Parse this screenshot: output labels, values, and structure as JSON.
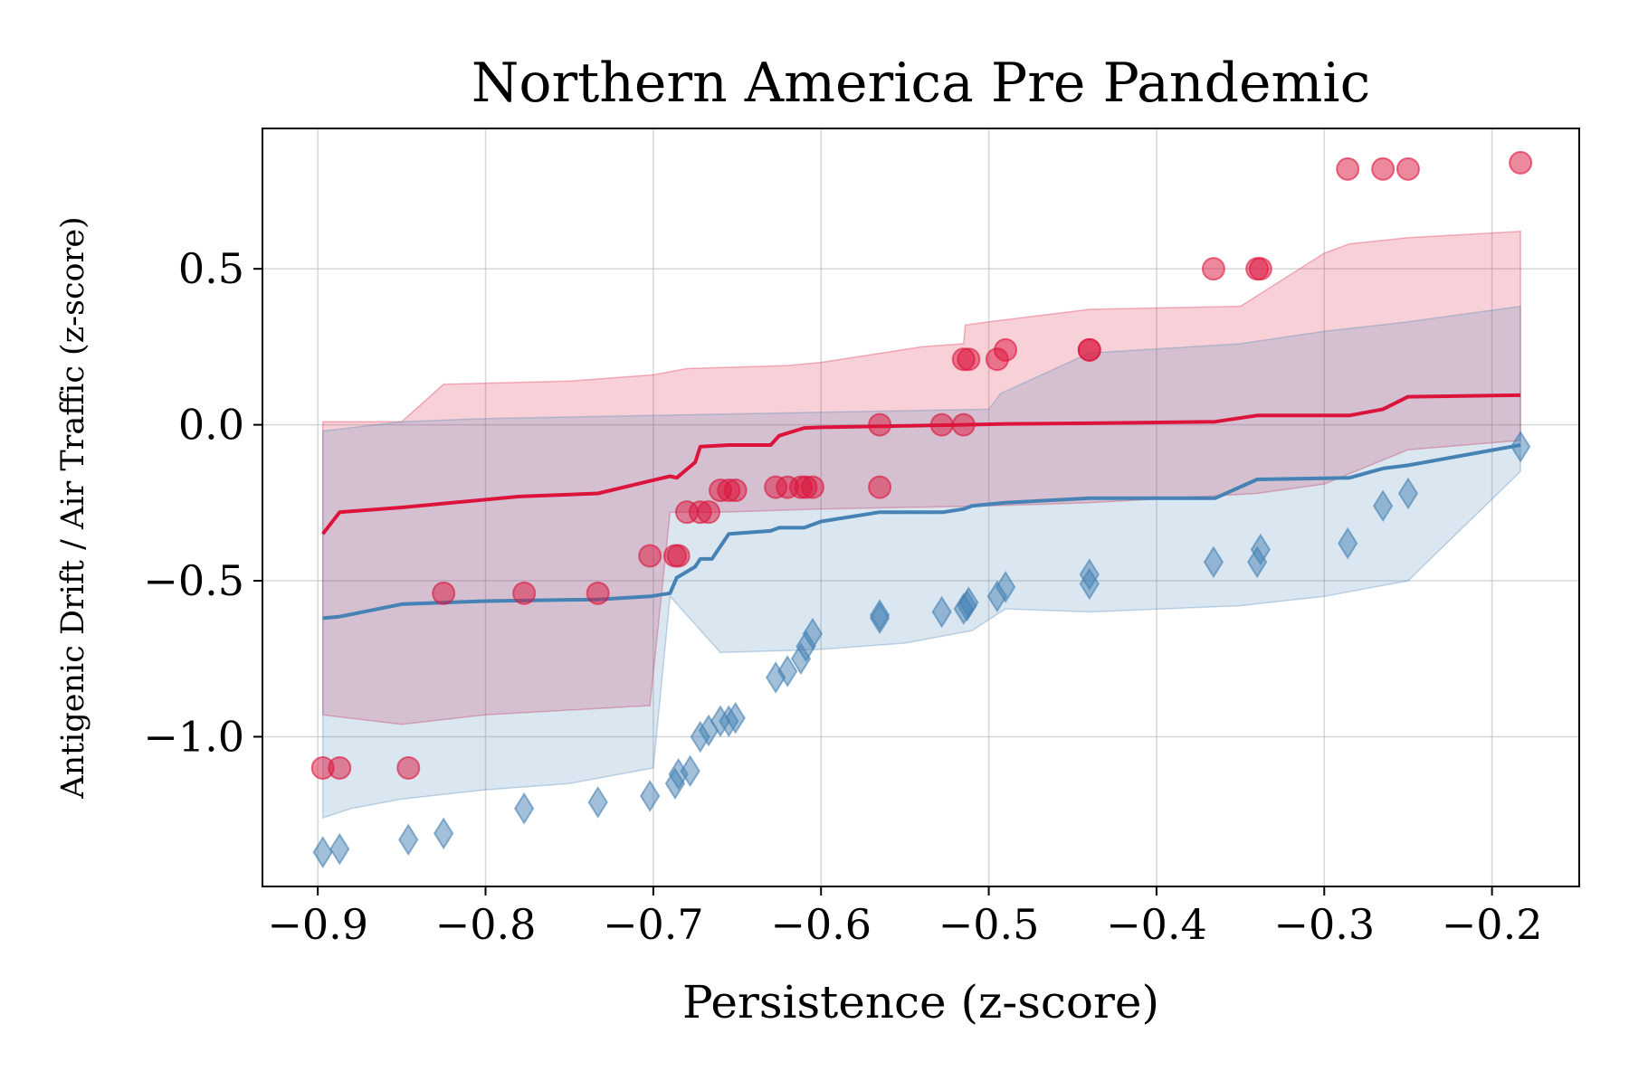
{
  "chart_data": {
    "type": "scatter",
    "title": "Northern America Pre Pandemic",
    "xlabel": "Persistence (z-score)",
    "ylabel": "Antigenic Drift / Air Traffic (z-score)",
    "xlim": [
      -0.933,
      -0.148
    ],
    "ylim": [
      -1.48,
      0.95
    ],
    "xticks": [
      -0.9,
      -0.8,
      -0.7,
      -0.6,
      -0.5,
      -0.4,
      -0.3,
      -0.2
    ],
    "xtick_labels": [
      "−0.9",
      "−0.8",
      "−0.7",
      "−0.6",
      "−0.5",
      "−0.4",
      "−0.3",
      "−0.2"
    ],
    "yticks": [
      0.5,
      0.0,
      -0.5,
      -1.0
    ],
    "ytick_labels": [
      "0.5",
      "0.0",
      "−0.5",
      "−1.0"
    ],
    "grid": true,
    "colors": {
      "red": "#dc143c",
      "blue": "#4682b4"
    },
    "bands": [
      {
        "color": "#dc143c",
        "upper": [
          [
            -0.897,
            0.01
          ],
          [
            -0.85,
            0.01
          ],
          [
            -0.825,
            0.13
          ],
          [
            -0.75,
            0.14
          ],
          [
            -0.7,
            0.16
          ],
          [
            -0.68,
            0.18
          ],
          [
            -0.62,
            0.19
          ],
          [
            -0.6,
            0.2
          ],
          [
            -0.54,
            0.25
          ],
          [
            -0.515,
            0.26
          ],
          [
            -0.514,
            0.32
          ],
          [
            -0.5,
            0.33
          ],
          [
            -0.44,
            0.37
          ],
          [
            -0.35,
            0.38
          ],
          [
            -0.3,
            0.55
          ],
          [
            -0.285,
            0.58
          ],
          [
            -0.25,
            0.6
          ],
          [
            -0.183,
            0.62
          ]
        ],
        "lower": [
          [
            -0.897,
            -0.93
          ],
          [
            -0.85,
            -0.96
          ],
          [
            -0.8,
            -0.93
          ],
          [
            -0.702,
            -0.9
          ],
          [
            -0.69,
            -0.28
          ],
          [
            -0.66,
            -0.28
          ],
          [
            -0.6,
            -0.27
          ],
          [
            -0.5,
            -0.26
          ],
          [
            -0.44,
            -0.25
          ],
          [
            -0.34,
            -0.22
          ],
          [
            -0.3,
            -0.19
          ],
          [
            -0.25,
            -0.08
          ],
          [
            -0.183,
            -0.05
          ]
        ]
      },
      {
        "color": "#4682b4",
        "upper": [
          [
            -0.897,
            -0.02
          ],
          [
            -0.85,
            0.01
          ],
          [
            -0.8,
            0.02
          ],
          [
            -0.7,
            0.03
          ],
          [
            -0.6,
            0.04
          ],
          [
            -0.5,
            0.05
          ],
          [
            -0.493,
            0.1
          ],
          [
            -0.44,
            0.23
          ],
          [
            -0.35,
            0.26
          ],
          [
            -0.3,
            0.3
          ],
          [
            -0.25,
            0.33
          ],
          [
            -0.183,
            0.38
          ]
        ],
        "lower": [
          [
            -0.897,
            -1.26
          ],
          [
            -0.88,
            -1.23
          ],
          [
            -0.85,
            -1.2
          ],
          [
            -0.8,
            -1.17
          ],
          [
            -0.75,
            -1.15
          ],
          [
            -0.7,
            -1.1
          ],
          [
            -0.69,
            -0.55
          ],
          [
            -0.66,
            -0.73
          ],
          [
            -0.6,
            -0.72
          ],
          [
            -0.55,
            -0.7
          ],
          [
            -0.51,
            -0.66
          ],
          [
            -0.49,
            -0.59
          ],
          [
            -0.44,
            -0.6
          ],
          [
            -0.35,
            -0.58
          ],
          [
            -0.3,
            -0.55
          ],
          [
            -0.25,
            -0.5
          ],
          [
            -0.183,
            -0.15
          ]
        ]
      }
    ],
    "lines": [
      {
        "color": "#dc143c",
        "points": [
          [
            -0.897,
            -0.35
          ],
          [
            -0.887,
            -0.28
          ],
          [
            -0.85,
            -0.265
          ],
          [
            -0.78,
            -0.23
          ],
          [
            -0.733,
            -0.22
          ],
          [
            -0.702,
            -0.18
          ],
          [
            -0.69,
            -0.165
          ],
          [
            -0.686,
            -0.17
          ],
          [
            -0.675,
            -0.12
          ],
          [
            -0.672,
            -0.07
          ],
          [
            -0.655,
            -0.065
          ],
          [
            -0.63,
            -0.065
          ],
          [
            -0.625,
            -0.035
          ],
          [
            -0.61,
            -0.01
          ],
          [
            -0.6,
            -0.008
          ],
          [
            -0.565,
            -0.005
          ],
          [
            -0.515,
            0.0
          ],
          [
            -0.49,
            0.003
          ],
          [
            -0.44,
            0.005
          ],
          [
            -0.365,
            0.01
          ],
          [
            -0.34,
            0.03
          ],
          [
            -0.285,
            0.03
          ],
          [
            -0.265,
            0.05
          ],
          [
            -0.25,
            0.09
          ],
          [
            -0.183,
            0.095
          ]
        ]
      },
      {
        "color": "#4682b4",
        "points": [
          [
            -0.897,
            -0.62
          ],
          [
            -0.887,
            -0.615
          ],
          [
            -0.85,
            -0.575
          ],
          [
            -0.8,
            -0.565
          ],
          [
            -0.733,
            -0.56
          ],
          [
            -0.702,
            -0.55
          ],
          [
            -0.69,
            -0.54
          ],
          [
            -0.686,
            -0.49
          ],
          [
            -0.675,
            -0.455
          ],
          [
            -0.672,
            -0.43
          ],
          [
            -0.665,
            -0.43
          ],
          [
            -0.655,
            -0.35
          ],
          [
            -0.63,
            -0.34
          ],
          [
            -0.625,
            -0.33
          ],
          [
            -0.61,
            -0.33
          ],
          [
            -0.6,
            -0.31
          ],
          [
            -0.565,
            -0.28
          ],
          [
            -0.527,
            -0.28
          ],
          [
            -0.515,
            -0.27
          ],
          [
            -0.51,
            -0.26
          ],
          [
            -0.49,
            -0.25
          ],
          [
            -0.44,
            -0.235
          ],
          [
            -0.365,
            -0.235
          ],
          [
            -0.34,
            -0.175
          ],
          [
            -0.285,
            -0.17
          ],
          [
            -0.265,
            -0.14
          ],
          [
            -0.25,
            -0.13
          ],
          [
            -0.183,
            -0.065
          ]
        ]
      }
    ],
    "series": [
      {
        "marker": "circle",
        "color": "#dc143c",
        "points": [
          [
            -0.897,
            -1.1
          ],
          [
            -0.887,
            -1.1
          ],
          [
            -0.846,
            -1.1
          ],
          [
            -0.825,
            -0.54
          ],
          [
            -0.777,
            -0.54
          ],
          [
            -0.733,
            -0.54
          ],
          [
            -0.702,
            -0.42
          ],
          [
            -0.687,
            -0.42
          ],
          [
            -0.685,
            -0.42
          ],
          [
            -0.68,
            -0.28
          ],
          [
            -0.672,
            -0.28
          ],
          [
            -0.667,
            -0.28
          ],
          [
            -0.66,
            -0.21
          ],
          [
            -0.655,
            -0.21
          ],
          [
            -0.651,
            -0.21
          ],
          [
            -0.627,
            -0.2
          ],
          [
            -0.62,
            -0.2
          ],
          [
            -0.612,
            -0.2
          ],
          [
            -0.609,
            -0.2
          ],
          [
            -0.605,
            -0.2
          ],
          [
            -0.565,
            -0.2
          ],
          [
            -0.565,
            0.0
          ],
          [
            -0.528,
            0.0
          ],
          [
            -0.515,
            0.0
          ],
          [
            -0.515,
            0.21
          ],
          [
            -0.512,
            0.21
          ],
          [
            -0.495,
            0.21
          ],
          [
            -0.49,
            0.24
          ],
          [
            -0.44,
            0.24
          ],
          [
            -0.44,
            0.24
          ],
          [
            -0.366,
            0.5
          ],
          [
            -0.34,
            0.5
          ],
          [
            -0.338,
            0.5
          ],
          [
            -0.286,
            0.82
          ],
          [
            -0.265,
            0.82
          ],
          [
            -0.25,
            0.82
          ],
          [
            -0.183,
            0.84
          ]
        ]
      },
      {
        "marker": "diamond",
        "color": "#4682b4",
        "points": [
          [
            -0.897,
            -1.37
          ],
          [
            -0.887,
            -1.36
          ],
          [
            -0.846,
            -1.33
          ],
          [
            -0.825,
            -1.31
          ],
          [
            -0.777,
            -1.23
          ],
          [
            -0.733,
            -1.21
          ],
          [
            -0.702,
            -1.19
          ],
          [
            -0.687,
            -1.15
          ],
          [
            -0.685,
            -1.12
          ],
          [
            -0.678,
            -1.11
          ],
          [
            -0.672,
            -1.0
          ],
          [
            -0.667,
            -0.98
          ],
          [
            -0.66,
            -0.95
          ],
          [
            -0.655,
            -0.95
          ],
          [
            -0.651,
            -0.94
          ],
          [
            -0.627,
            -0.81
          ],
          [
            -0.62,
            -0.79
          ],
          [
            -0.612,
            -0.75
          ],
          [
            -0.609,
            -0.71
          ],
          [
            -0.605,
            -0.67
          ],
          [
            -0.565,
            -0.62
          ],
          [
            -0.565,
            -0.61
          ],
          [
            -0.528,
            -0.6
          ],
          [
            -0.515,
            -0.59
          ],
          [
            -0.513,
            -0.58
          ],
          [
            -0.512,
            -0.57
          ],
          [
            -0.495,
            -0.55
          ],
          [
            -0.49,
            -0.52
          ],
          [
            -0.44,
            -0.51
          ],
          [
            -0.44,
            -0.48
          ],
          [
            -0.366,
            -0.44
          ],
          [
            -0.34,
            -0.44
          ],
          [
            -0.338,
            -0.4
          ],
          [
            -0.286,
            -0.38
          ],
          [
            -0.265,
            -0.26
          ],
          [
            -0.25,
            -0.22
          ],
          [
            -0.183,
            -0.07
          ]
        ]
      }
    ]
  }
}
